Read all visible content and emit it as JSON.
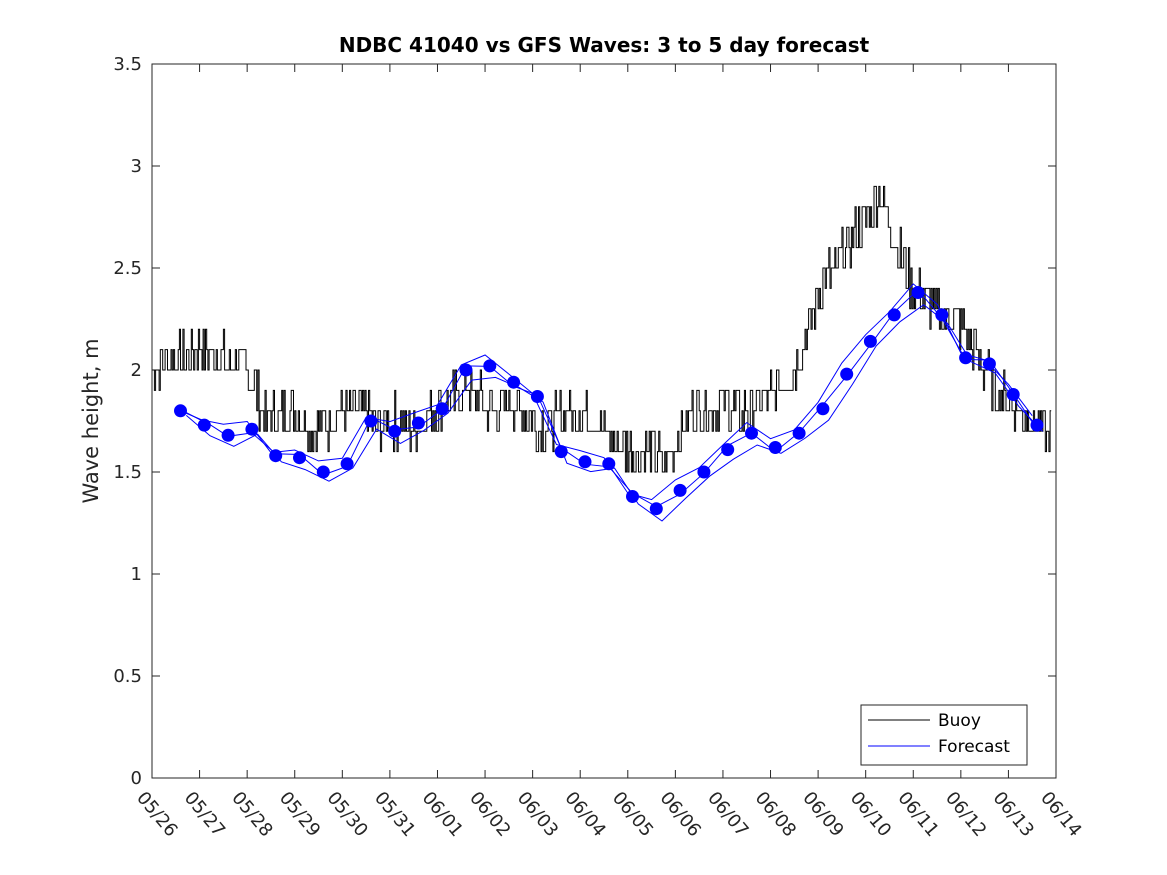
{
  "chart_data": {
    "type": "line",
    "title": "NDBC 41040 vs GFS Waves: 3 to 5 day forecast",
    "xlabel": "",
    "ylabel": "Wave height, m",
    "ylim": [
      0,
      3.5
    ],
    "yticks": [
      "0",
      "0.5",
      "1",
      "1.5",
      "2",
      "2.5",
      "3",
      "3.5"
    ],
    "xlim_days": [
      0,
      19
    ],
    "xticks": [
      "05/26",
      "05/27",
      "05/28",
      "05/29",
      "05/30",
      "05/31",
      "06/01",
      "06/02",
      "06/03",
      "06/04",
      "06/05",
      "06/06",
      "06/07",
      "06/08",
      "06/09",
      "06/10",
      "06/11",
      "06/12",
      "06/13",
      "06/14"
    ],
    "legend": {
      "position": "bottom-right",
      "entries": [
        "Buoy",
        "Forecast"
      ]
    },
    "colors": {
      "buoy": "#000000",
      "forecast": "#0000ff"
    },
    "series": [
      {
        "name": "Buoy",
        "x": [
          0,
          0.3,
          0.6,
          0.9,
          1.2,
          1.5,
          1.8,
          2.1,
          2.4,
          2.7,
          3.0,
          3.3,
          3.6,
          3.9,
          4.2,
          4.5,
          4.8,
          5.1,
          5.4,
          5.7,
          6.0,
          6.3,
          6.6,
          6.9,
          7.2,
          7.5,
          7.8,
          8.1,
          8.4,
          8.7,
          9.0,
          9.3,
          9.6,
          9.9,
          10.2,
          10.5,
          10.8,
          11.1,
          11.4,
          11.7,
          12.0,
          12.3,
          12.6,
          12.9,
          13.2,
          13.5,
          13.8,
          14.1,
          14.4,
          14.7,
          15.0,
          15.3,
          15.6,
          15.9,
          16.2,
          16.5,
          16.8,
          17.1,
          17.4,
          17.7,
          18.0,
          18.3,
          18.6,
          18.9
        ],
        "values": [
          2.0,
          2.05,
          2.05,
          2.1,
          2.1,
          2.05,
          2.05,
          1.95,
          1.75,
          1.8,
          1.8,
          1.72,
          1.72,
          1.78,
          1.8,
          1.78,
          1.72,
          1.75,
          1.7,
          1.75,
          1.82,
          1.85,
          1.9,
          1.85,
          1.8,
          1.85,
          1.8,
          1.72,
          1.75,
          1.8,
          1.8,
          1.75,
          1.68,
          1.62,
          1.58,
          1.6,
          1.55,
          1.7,
          1.8,
          1.82,
          1.85,
          1.8,
          1.78,
          1.85,
          1.95,
          2.0,
          2.2,
          2.45,
          2.5,
          2.65,
          2.75,
          2.85,
          2.65,
          2.45,
          2.35,
          2.3,
          2.25,
          2.2,
          2.05,
          1.9,
          1.85,
          1.8,
          1.72,
          1.68
        ]
      },
      {
        "name": "Forecast",
        "x": [
          0.6,
          1.1,
          1.6,
          2.1,
          2.6,
          3.1,
          3.6,
          4.1,
          4.6,
          5.1,
          5.6,
          6.1,
          6.6,
          7.1,
          7.6,
          8.1,
          8.6,
          9.1,
          9.6,
          10.1,
          10.6,
          11.1,
          11.6,
          12.1,
          12.6,
          13.1,
          13.6,
          14.1,
          14.6,
          15.1,
          15.6,
          16.1,
          16.6,
          17.1,
          17.6,
          18.1,
          18.6
        ],
        "values": [
          1.8,
          1.73,
          1.68,
          1.71,
          1.58,
          1.57,
          1.5,
          1.54,
          1.75,
          1.7,
          1.74,
          1.81,
          2.0,
          2.02,
          1.94,
          1.87,
          1.6,
          1.55,
          1.54,
          1.38,
          1.32,
          1.41,
          1.5,
          1.61,
          1.69,
          1.62,
          1.69,
          1.81,
          1.98,
          2.14,
          2.27,
          2.38,
          2.27,
          2.06,
          2.03,
          1.88,
          1.73
        ]
      }
    ]
  }
}
